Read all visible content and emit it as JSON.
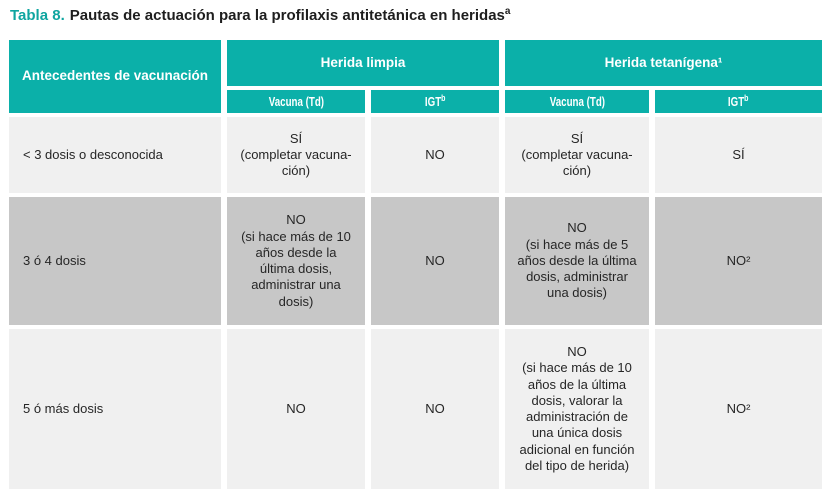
{
  "caption": {
    "label": "Tabla 8.",
    "text": "Pautas de actuación para la profilaxis antitetánica en heridas",
    "superscript": "a"
  },
  "colors": {
    "header_teal": "#0bb0a9",
    "caption_teal": "#0fa5a0",
    "row_light": "#f0f0f0",
    "row_dark": "#c7c7c7"
  },
  "table": {
    "corner_header": "Antecedentes de vacunación",
    "group_headers": [
      "Herida limpia",
      "Herida tetanígena¹"
    ],
    "sub_headers": [
      {
        "label": "Vacuna (Td)",
        "sup": ""
      },
      {
        "label": "IGT",
        "sup": "b"
      },
      {
        "label": "Vacuna (Td)",
        "sup": ""
      },
      {
        "label": "IGT",
        "sup": "b"
      }
    ],
    "rows": [
      {
        "antecedentes": "< 3 dosis o desconocida",
        "cells": [
          "SÍ\n(completar vacuna-\nción)",
          "NO",
          "SÍ\n(completar vacuna-\nción)",
          "SÍ"
        ]
      },
      {
        "antecedentes": "3 ó 4 dosis",
        "cells": [
          "NO\n(si hace más de 10\naños desde la\núltima dosis,\nadministrar una\ndosis)",
          "NO",
          "NO\n(si hace más de 5\naños desde la última\ndosis, administrar\nuna dosis)",
          "NO²"
        ]
      },
      {
        "antecedentes": "5 ó más dosis",
        "cells": [
          "NO",
          "NO",
          "NO\n(si hace más de 10\naños de la última\ndosis, valorar la\nadministración de\nuna única dosis\nadicional en función\ndel tipo de herida)",
          "NO²"
        ]
      }
    ]
  }
}
